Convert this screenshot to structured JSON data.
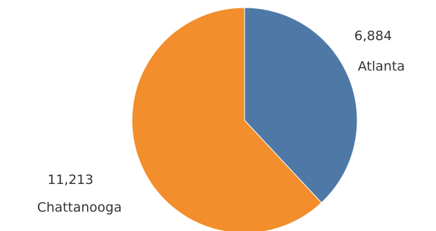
{
  "chart_data": {
    "type": "pie",
    "slices": [
      {
        "label": "Atlanta",
        "value": 6884,
        "value_text": "6,884",
        "color": "#4e79a7"
      },
      {
        "label": "Chattanooga",
        "value": 11213,
        "value_text": "11,213",
        "color": "#f28e2b"
      }
    ],
    "start_angle": "12 o'clock",
    "direction": "clockwise",
    "legend": "none"
  }
}
